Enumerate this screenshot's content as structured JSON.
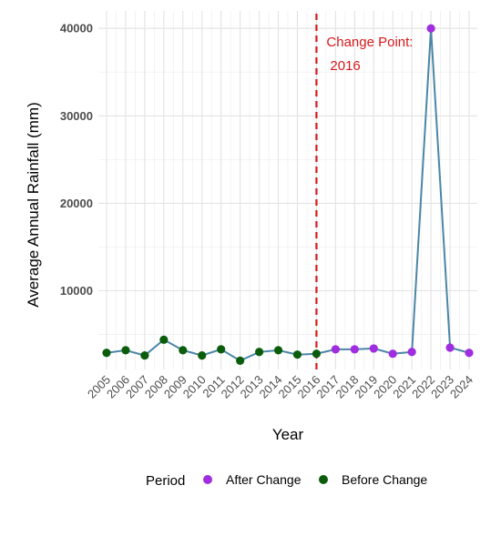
{
  "chart_data": {
    "type": "line",
    "xlabel": "Year",
    "ylabel": "Average Annual Rainfall (mm)",
    "x": [
      "2005",
      "2006",
      "2007",
      "2008",
      "2009",
      "2010",
      "2011",
      "2012",
      "2013",
      "2014",
      "2015",
      "2016",
      "2017",
      "2018",
      "2019",
      "2020",
      "2021",
      "2022",
      "2023",
      "2024"
    ],
    "y": [
      2900,
      3200,
      2600,
      4400,
      3200,
      2600,
      3300,
      2000,
      3000,
      3200,
      2700,
      2800,
      3300,
      3300,
      3400,
      2800,
      3000,
      40000,
      3500,
      2900
    ],
    "period": [
      "Before Change",
      "Before Change",
      "Before Change",
      "Before Change",
      "Before Change",
      "Before Change",
      "Before Change",
      "Before Change",
      "Before Change",
      "Before Change",
      "Before Change",
      "Before Change",
      "After Change",
      "After Change",
      "After Change",
      "After Change",
      "After Change",
      "After Change",
      "After Change",
      "After Change"
    ],
    "yticks": [
      10000,
      20000,
      30000,
      40000
    ],
    "ylim": [
      1000,
      42000
    ],
    "grid": true,
    "line_color": "#4b86a6",
    "change_point": {
      "year": "2016",
      "label_line1": "Change Point:",
      "label_line2": "2016",
      "color": "#d7191c"
    },
    "legend": {
      "title": "Period",
      "position": "bottom",
      "items": [
        {
          "label": "After Change",
          "color": "#a02de0"
        },
        {
          "label": "Before Change",
          "color": "#0b5d0b"
        }
      ]
    }
  }
}
